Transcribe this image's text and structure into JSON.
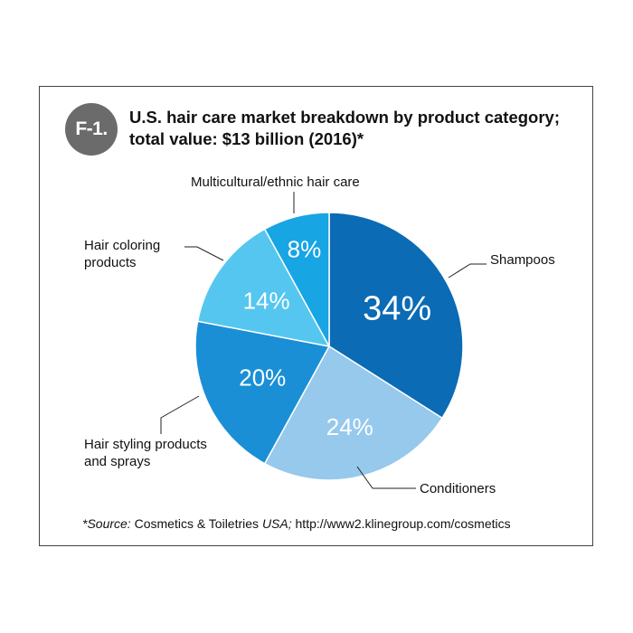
{
  "badge": "F-1.",
  "title_line1": "U.S. hair care market breakdown by product category;",
  "title_line2": "total value: $13 billion (2016)*",
  "source": {
    "prefix": "*Source:",
    "publisher": " Cosmetics & Toiletries ",
    "region": "USA;",
    "url": " http://www2.klinegroup.com/cosmetics"
  },
  "chart_data": {
    "type": "pie",
    "title": "U.S. hair care market breakdown by product category; total value: $13 billion (2016)*",
    "slices": [
      {
        "label": "Shampoos",
        "label_lines": [
          "Shampoos"
        ],
        "value": 34,
        "display": "34%",
        "color": "#0b6bb5"
      },
      {
        "label": "Conditioners",
        "label_lines": [
          "Conditioners"
        ],
        "value": 24,
        "display": "24%",
        "color": "#96c9ec"
      },
      {
        "label": "Hair styling products and sprays",
        "label_lines": [
          "Hair styling products",
          "and sprays"
        ],
        "value": 20,
        "display": "20%",
        "color": "#1a8fd6"
      },
      {
        "label": "Hair coloring products",
        "label_lines": [
          "Hair coloring",
          "products"
        ],
        "value": 14,
        "display": "14%",
        "color": "#55c6f0"
      },
      {
        "label": "Multicultural/ethnic hair care",
        "label_lines": [
          "Multicultural/ethnic hair care"
        ],
        "value": 8,
        "display": "8%",
        "color": "#17a5e4"
      }
    ]
  }
}
